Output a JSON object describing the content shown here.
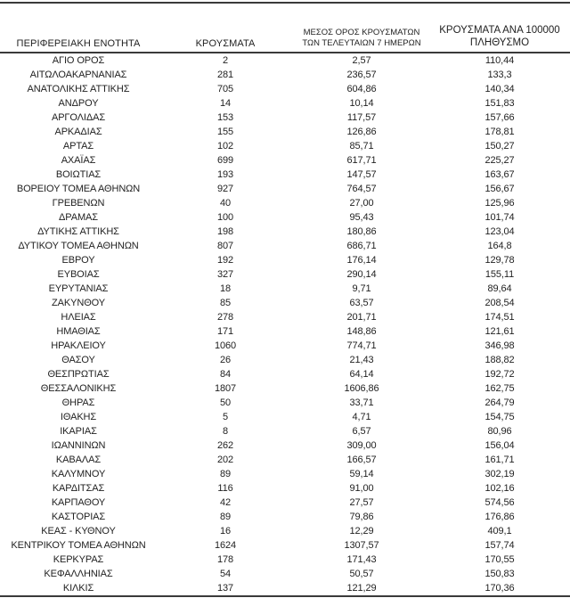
{
  "colors": {
    "background": "#ffffff",
    "text": "#222222",
    "rule": "#3a3a3a"
  },
  "table": {
    "columns": [
      {
        "name": "region",
        "label": "ΠΕΡΙΦΕΡΕΙΑΚΗ ΕΝΟΤΗΤΑ"
      },
      {
        "name": "cases",
        "label": "ΚΡΟΥΣΜΑΤΑ"
      },
      {
        "name": "avg7day",
        "label_line1": "ΜΕΣΟΣ ΟΡΟΣ ΚΡΟΥΣΜΑΤΩΝ",
        "label_line2": "ΤΩΝ ΤΕΛΕΥΤΑΙΩΝ 7 ΗΜΕΡΩΝ"
      },
      {
        "name": "per100k",
        "label_line1": "ΚΡΟΥΣΜΑΤΑ ΑΝΑ 100000",
        "label_line2": "ΠΛΗΘΥΣΜΟ"
      }
    ],
    "rows": [
      [
        "ΑΓΙΟ ΟΡΟΣ",
        "2",
        "2,57",
        "110,44"
      ],
      [
        "ΑΙΤΩΛΟΑΚΑΡΝΑΝΙΑΣ",
        "281",
        "236,57",
        "133,3"
      ],
      [
        "ΑΝΑΤΟΛΙΚΗΣ ΑΤΤΙΚΗΣ",
        "705",
        "604,86",
        "140,34"
      ],
      [
        "ΑΝΔΡΟΥ",
        "14",
        "10,14",
        "151,83"
      ],
      [
        "ΑΡΓΟΛΙΔΑΣ",
        "153",
        "117,57",
        "157,66"
      ],
      [
        "ΑΡΚΑΔΙΑΣ",
        "155",
        "126,86",
        "178,81"
      ],
      [
        "ΑΡΤΑΣ",
        "102",
        "85,71",
        "150,27"
      ],
      [
        "ΑΧΑΪΑΣ",
        "699",
        "617,71",
        "225,27"
      ],
      [
        "ΒΟΙΩΤΙΑΣ",
        "193",
        "147,57",
        "163,67"
      ],
      [
        "ΒΟΡΕΙΟΥ ΤΟΜΕΑ ΑΘΗΝΩΝ",
        "927",
        "764,57",
        "156,67"
      ],
      [
        "ΓΡΕΒΕΝΩΝ",
        "40",
        "27,00",
        "125,96"
      ],
      [
        "ΔΡΑΜΑΣ",
        "100",
        "95,43",
        "101,74"
      ],
      [
        "ΔΥΤΙΚΗΣ ΑΤΤΙΚΗΣ",
        "198",
        "180,86",
        "123,04"
      ],
      [
        "ΔΥΤΙΚΟΥ ΤΟΜΕΑ ΑΘΗΝΩΝ",
        "807",
        "686,71",
        "164,8"
      ],
      [
        "ΕΒΡΟΥ",
        "192",
        "176,14",
        "129,78"
      ],
      [
        "ΕΥΒΟΙΑΣ",
        "327",
        "290,14",
        "155,11"
      ],
      [
        "ΕΥΡΥΤΑΝΙΑΣ",
        "18",
        "9,71",
        "89,64"
      ],
      [
        "ΖΑΚΥΝΘΟΥ",
        "85",
        "63,57",
        "208,54"
      ],
      [
        "ΗΛΕΙΑΣ",
        "278",
        "201,71",
        "174,51"
      ],
      [
        "ΗΜΑΘΙΑΣ",
        "171",
        "148,86",
        "121,61"
      ],
      [
        "ΗΡΑΚΛΕΙΟΥ",
        "1060",
        "774,71",
        "346,98"
      ],
      [
        "ΘΑΣΟΥ",
        "26",
        "21,43",
        "188,82"
      ],
      [
        "ΘΕΣΠΡΩΤΙΑΣ",
        "84",
        "64,14",
        "192,72"
      ],
      [
        "ΘΕΣΣΑΛΟΝΙΚΗΣ",
        "1807",
        "1606,86",
        "162,75"
      ],
      [
        "ΘΗΡΑΣ",
        "50",
        "33,71",
        "264,79"
      ],
      [
        "ΙΘΑΚΗΣ",
        "5",
        "4,71",
        "154,75"
      ],
      [
        "ΙΚΑΡΙΑΣ",
        "8",
        "6,57",
        "80,96"
      ],
      [
        "ΙΩΑΝΝΙΝΩΝ",
        "262",
        "309,00",
        "156,04"
      ],
      [
        "ΚΑΒΑΛΑΣ",
        "202",
        "166,57",
        "161,71"
      ],
      [
        "ΚΑΛΥΜΝΟΥ",
        "89",
        "59,14",
        "302,19"
      ],
      [
        "ΚΑΡΔΙΤΣΑΣ",
        "116",
        "91,00",
        "102,16"
      ],
      [
        "ΚΑΡΠΑΘΟΥ",
        "42",
        "27,57",
        "574,56"
      ],
      [
        "ΚΑΣΤΟΡΙΑΣ",
        "89",
        "79,86",
        "176,86"
      ],
      [
        "ΚΕΑΣ - ΚΥΘΝΟΥ",
        "16",
        "12,29",
        "409,1"
      ],
      [
        "ΚΕΝΤΡΙΚΟΥ ΤΟΜΕΑ ΑΘΗΝΩΝ",
        "1624",
        "1307,57",
        "157,74"
      ],
      [
        "ΚΕΡΚΥΡΑΣ",
        "178",
        "171,43",
        "170,55"
      ],
      [
        "ΚΕΦΑΛΛΗΝΙΑΣ",
        "54",
        "50,57",
        "150,83"
      ],
      [
        "ΚΙΛΚΙΣ",
        "137",
        "121,29",
        "170,36"
      ]
    ]
  }
}
